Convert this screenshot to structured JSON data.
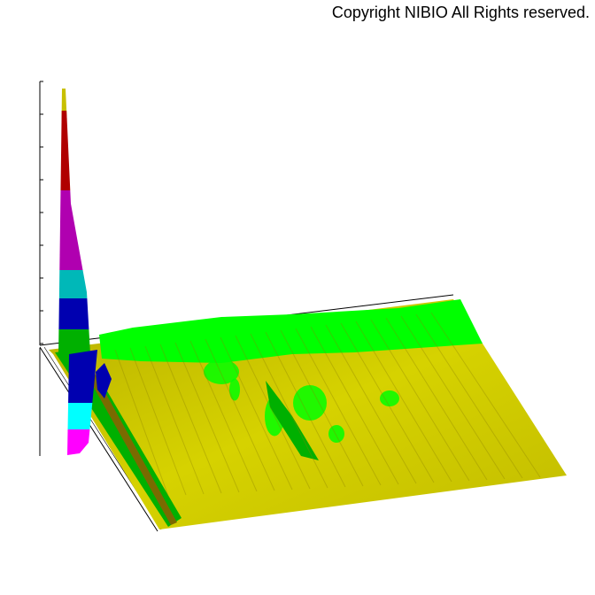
{
  "copyright": "Copyright NIBIO All Rights reserved.",
  "chart_data": {
    "type": "surface",
    "title": "",
    "xlabel": "",
    "ylabel": "",
    "zlabel": "",
    "grid": false,
    "legend": "none",
    "colorscale": [
      "#c8c000",
      "#00ff00",
      "#00b000",
      "#0000b0",
      "#00b8b8",
      "#00ffff",
      "#b000b0",
      "#ff00ff",
      "#b00000"
    ]
  }
}
